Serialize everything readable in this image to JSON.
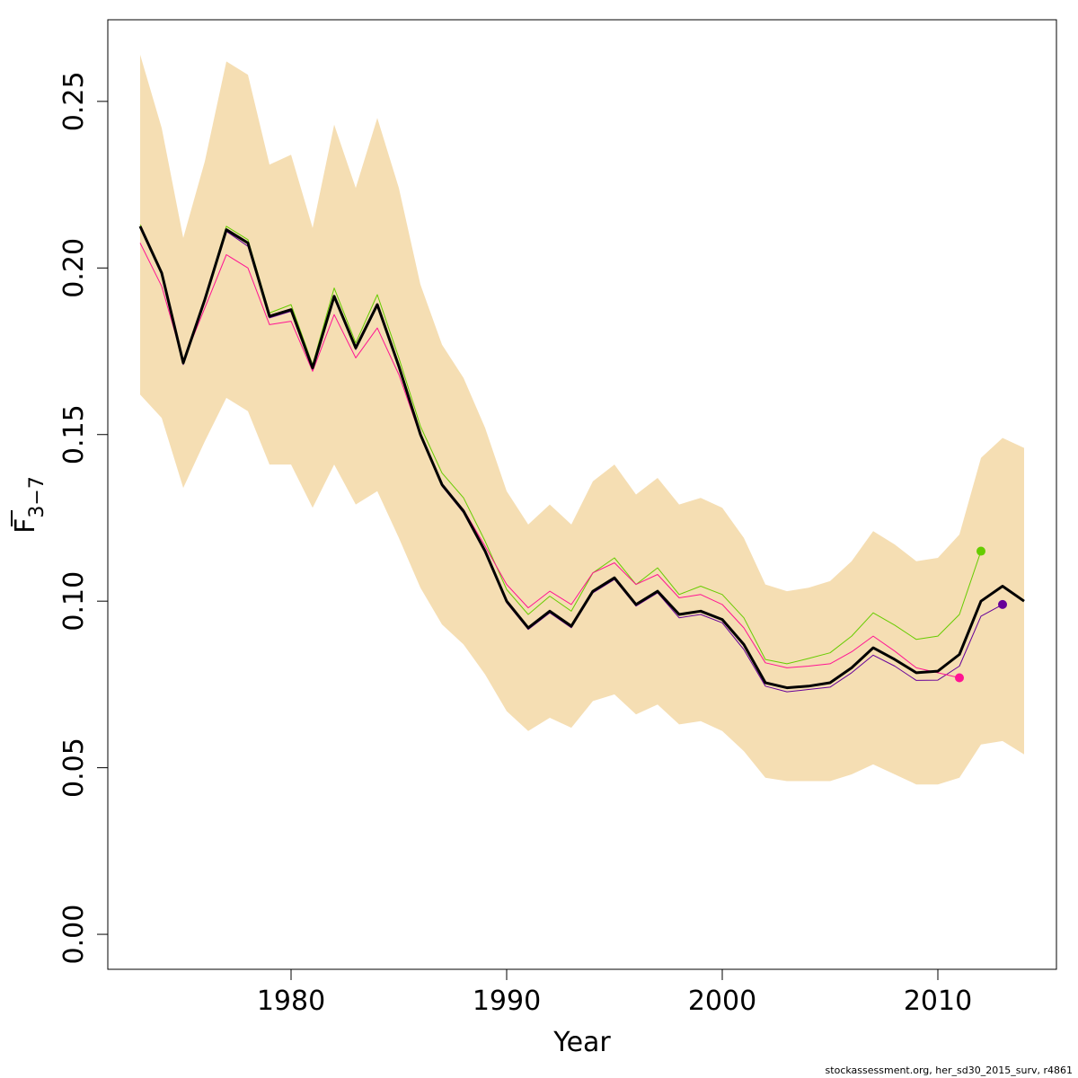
{
  "chart_data": {
    "type": "line",
    "xlabel": "Year",
    "ylabel_main": "F",
    "ylabel_sub": "3−7",
    "xlim": [
      1971.5,
      2015.5
    ],
    "ylim": [
      -0.0105,
      0.2745
    ],
    "x_ticks": [
      1980,
      1990,
      2000,
      2010
    ],
    "y_ticks": [
      0.0,
      0.05,
      0.1,
      0.15,
      0.2,
      0.25
    ],
    "y_tick_labels": [
      "0.00",
      "0.05",
      "0.10",
      "0.15",
      "0.20",
      "0.25"
    ],
    "colors": {
      "band": "#f5deb3",
      "main": "#000000",
      "retro_green": "#66cc00",
      "retro_pink": "#ff1493",
      "retro_purple": "#660099"
    },
    "band": {
      "x": [
        1973,
        1974,
        1975,
        1976,
        1977,
        1978,
        1979,
        1980,
        1981,
        1982,
        1983,
        1984,
        1985,
        1986,
        1987,
        1988,
        1989,
        1990,
        1991,
        1992,
        1993,
        1994,
        1995,
        1996,
        1997,
        1998,
        1999,
        2000,
        2001,
        2002,
        2003,
        2004,
        2005,
        2006,
        2007,
        2008,
        2009,
        2010,
        2011,
        2012,
        2013,
        2014
      ],
      "upper": [
        0.264,
        0.242,
        0.209,
        0.232,
        0.262,
        0.258,
        0.231,
        0.234,
        0.212,
        0.243,
        0.224,
        0.245,
        0.224,
        0.195,
        0.177,
        0.167,
        0.152,
        0.133,
        0.123,
        0.129,
        0.123,
        0.136,
        0.141,
        0.132,
        0.137,
        0.129,
        0.131,
        0.128,
        0.119,
        0.105,
        0.103,
        0.104,
        0.106,
        0.112,
        0.121,
        0.117,
        0.112,
        0.113,
        0.12,
        0.143,
        0.149,
        0.146
      ],
      "lower": [
        0.162,
        0.155,
        0.134,
        0.148,
        0.161,
        0.157,
        0.141,
        0.141,
        0.128,
        0.141,
        0.129,
        0.133,
        0.119,
        0.104,
        0.093,
        0.087,
        0.078,
        0.067,
        0.061,
        0.065,
        0.062,
        0.07,
        0.072,
        0.066,
        0.069,
        0.063,
        0.064,
        0.061,
        0.055,
        0.047,
        0.046,
        0.046,
        0.046,
        0.048,
        0.051,
        0.048,
        0.045,
        0.045,
        0.047,
        0.057,
        0.058,
        0.054
      ]
    },
    "series": [
      {
        "x": [
          1973,
          1974,
          1975,
          1976,
          1977,
          1978,
          1979,
          1980,
          1981,
          1982,
          1983,
          1984,
          1985,
          1986,
          1987,
          1988,
          1989,
          1990,
          1991,
          1992,
          1993,
          1994,
          1995,
          1996,
          1997,
          1998,
          1999,
          2000,
          2001,
          2002,
          2003,
          2004,
          2005,
          2006,
          2007,
          2008,
          2009,
          2010,
          2011,
          2012,
          2013,
          2014
        ],
        "values": [
          0.2125,
          0.1985,
          0.1715,
          0.1905,
          0.2115,
          0.2075,
          0.1855,
          0.1875,
          0.17,
          0.1915,
          0.176,
          0.189,
          0.1705,
          0.15,
          0.135,
          0.127,
          0.115,
          0.1,
          0.092,
          0.097,
          0.0925,
          0.103,
          0.107,
          0.099,
          0.103,
          0.096,
          0.097,
          0.0945,
          0.087,
          0.0755,
          0.074,
          0.0745,
          0.0755,
          0.08,
          0.086,
          0.0825,
          0.0785,
          0.079,
          0.084,
          0.1,
          0.1045,
          0.1
        ]
      },
      {
        "x": [
          1973,
          1974,
          1975,
          1976,
          1977,
          1978,
          1979,
          1980,
          1981,
          1982,
          1983,
          1984,
          1985,
          1986,
          1987,
          1988,
          1989,
          1990,
          1991,
          1992,
          1993,
          1994,
          1995,
          1996,
          1997,
          1998,
          1999,
          2000,
          2001,
          2002,
          2003,
          2004,
          2005,
          2006,
          2007,
          2008,
          2009,
          2010,
          2011,
          2012,
          2013
        ],
        "values": [
          0.212,
          0.198,
          0.171,
          0.19,
          0.211,
          0.2065,
          0.185,
          0.187,
          0.1695,
          0.191,
          0.1755,
          0.1885,
          0.17,
          0.1495,
          0.1345,
          0.1265,
          0.1145,
          0.0995,
          0.0915,
          0.0965,
          0.092,
          0.1025,
          0.1065,
          0.0985,
          0.1025,
          0.095,
          0.096,
          0.0935,
          0.0855,
          0.0745,
          0.0728,
          0.0735,
          0.0742,
          0.0785,
          0.0838,
          0.0805,
          0.0762,
          0.0763,
          0.0805,
          0.0955,
          0.099
        ],
        "color": "#660099"
      },
      {
        "x": [
          1973,
          1974,
          1975,
          1976,
          1977,
          1978,
          1979,
          1980,
          1981,
          1982,
          1983,
          1984,
          1985,
          1986,
          1987,
          1988,
          1989,
          1990,
          1991,
          1992,
          1993,
          1994,
          1995,
          1996,
          1997,
          1998,
          1999,
          2000,
          2001,
          2002,
          2003,
          2004,
          2005,
          2006,
          2007,
          2008,
          2009,
          2010,
          2011,
          2012
        ],
        "values": [
          0.213,
          0.199,
          0.172,
          0.191,
          0.2125,
          0.2085,
          0.1865,
          0.189,
          0.171,
          0.194,
          0.1775,
          0.192,
          0.173,
          0.1525,
          0.1385,
          0.131,
          0.118,
          0.1035,
          0.096,
          0.1015,
          0.097,
          0.1085,
          0.113,
          0.105,
          0.11,
          0.102,
          0.1045,
          0.102,
          0.095,
          0.0825,
          0.0812,
          0.0828,
          0.0845,
          0.0895,
          0.0965,
          0.0928,
          0.0885,
          0.0895,
          0.096,
          0.115
        ],
        "color": "#66cc00"
      },
      {
        "x": [
          1973,
          1974,
          1975,
          1976,
          1977,
          1978,
          1979,
          1980,
          1981,
          1982,
          1983,
          1984,
          1985,
          1986,
          1987,
          1988,
          1989,
          1990,
          1991,
          1992,
          1993,
          1994,
          1995,
          1996,
          1997,
          1998,
          1999,
          2000,
          2001,
          2002,
          2003,
          2004,
          2005,
          2006,
          2007,
          2008,
          2009,
          2010,
          2011
        ],
        "values": [
          0.2075,
          0.1945,
          0.172,
          0.188,
          0.204,
          0.2,
          0.183,
          0.184,
          0.169,
          0.186,
          0.173,
          0.182,
          0.168,
          0.1495,
          0.135,
          0.1275,
          0.1165,
          0.105,
          0.098,
          0.103,
          0.099,
          0.1085,
          0.1115,
          0.105,
          0.108,
          0.101,
          0.102,
          0.099,
          0.092,
          0.0815,
          0.08,
          0.0805,
          0.0812,
          0.0848,
          0.0895,
          0.085,
          0.08,
          0.0785,
          0.077
        ],
        "color": "#ff1493"
      }
    ]
  },
  "footer_text": "stockassessment.org, her_sd30_2015_surv, r4861"
}
